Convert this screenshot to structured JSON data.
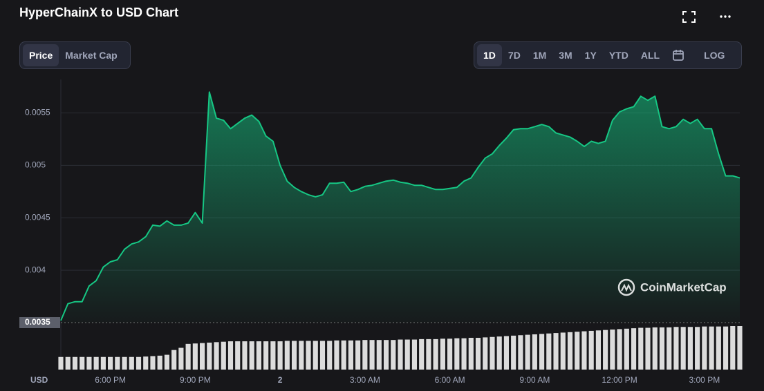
{
  "header": {
    "title": "HyperChainX to USD Chart",
    "tabs": [
      "Price",
      "Market Cap"
    ],
    "ranges": [
      "1D",
      "7D",
      "1M",
      "3M",
      "1Y",
      "YTD",
      "ALL"
    ],
    "log": "LOG"
  },
  "watermark": "CoinMarketCap",
  "chart_data": {
    "type": "line",
    "currency": "USD",
    "color": "#16c784",
    "categories": [
      null,
      null,
      null,
      null,
      null,
      null,
      null,
      "6:00 PM",
      null,
      null,
      null,
      null,
      null,
      null,
      null,
      null,
      null,
      null,
      null,
      "9:00 PM",
      null,
      null,
      null,
      null,
      null,
      null,
      null,
      null,
      null,
      null,
      null,
      "2",
      null,
      null,
      null,
      null,
      null,
      null,
      null,
      null,
      null,
      null,
      null,
      "3:00 AM",
      null,
      null,
      null,
      null,
      null,
      null,
      null,
      null,
      null,
      null,
      null,
      "6:00 AM",
      null,
      null,
      null,
      null,
      null,
      null,
      null,
      null,
      null,
      null,
      null,
      "9:00 AM",
      null,
      null,
      null,
      null,
      null,
      null,
      null,
      null,
      null,
      null,
      null,
      "12:00 PM",
      null,
      null,
      null,
      null,
      null,
      null,
      null,
      null,
      null,
      null,
      null,
      "3:00 PM",
      null,
      null,
      null,
      null,
      null
    ],
    "series": [
      {
        "name": "Price",
        "values": [
          0.00352,
          0.00368,
          0.0037,
          0.0037,
          0.00385,
          0.0039,
          0.00403,
          0.00408,
          0.0041,
          0.0042,
          0.00425,
          0.00427,
          0.00432,
          0.00443,
          0.00442,
          0.00447,
          0.00443,
          0.00443,
          0.00445,
          0.00455,
          0.00445,
          0.0057,
          0.00545,
          0.00543,
          0.00535,
          0.0054,
          0.00545,
          0.00548,
          0.00542,
          0.00528,
          0.00523,
          0.005,
          0.00485,
          0.00479,
          0.00475,
          0.00472,
          0.0047,
          0.00472,
          0.00483,
          0.00483,
          0.00484,
          0.00475,
          0.00477,
          0.0048,
          0.00481,
          0.00483,
          0.00485,
          0.00486,
          0.00484,
          0.00483,
          0.00481,
          0.00481,
          0.00479,
          0.00477,
          0.00477,
          0.00478,
          0.00479,
          0.00485,
          0.00488,
          0.00498,
          0.00507,
          0.00511,
          0.00519,
          0.00526,
          0.00534,
          0.00535,
          0.00535,
          0.00537,
          0.00539,
          0.00537,
          0.00531,
          0.00529,
          0.00527,
          0.00523,
          0.00518,
          0.00523,
          0.00521,
          0.00523,
          0.00543,
          0.00551,
          0.00554,
          0.00556,
          0.00566,
          0.00562,
          0.00566,
          0.00537,
          0.00535,
          0.00537,
          0.00544,
          0.0054,
          0.00544,
          0.00535,
          0.00535,
          0.00511,
          0.0049,
          0.0049,
          0.00488
        ]
      },
      {
        "name": "Volume",
        "axis": "y2",
        "color": "#ffffff",
        "values": [
          29,
          29,
          29,
          29,
          29,
          29,
          29,
          29,
          29,
          29,
          29,
          29,
          30,
          31,
          32,
          34,
          45,
          50,
          59,
          60,
          61,
          62,
          63,
          64,
          65,
          65,
          65,
          65,
          65,
          65,
          65,
          65,
          66,
          66,
          66,
          66,
          66,
          66,
          66,
          67,
          67,
          67,
          67,
          68,
          68,
          68,
          68,
          68,
          69,
          69,
          69,
          70,
          70,
          70,
          71,
          71,
          72,
          72,
          73,
          73,
          74,
          75,
          76,
          77,
          78,
          79,
          80,
          81,
          82,
          83,
          84,
          85,
          86,
          87,
          88,
          89,
          90,
          91,
          92,
          93,
          94,
          95,
          96,
          96,
          97,
          97,
          97,
          98,
          98,
          98,
          98,
          99,
          99,
          99,
          99,
          100,
          100
        ]
      }
    ],
    "ylim": [
      0.0035,
      0.00582
    ],
    "yticks": [
      0.0035,
      0.004,
      0.0045,
      0.005,
      0.0055
    ],
    "y2lim": [
      0,
      100
    ],
    "grid": true
  }
}
